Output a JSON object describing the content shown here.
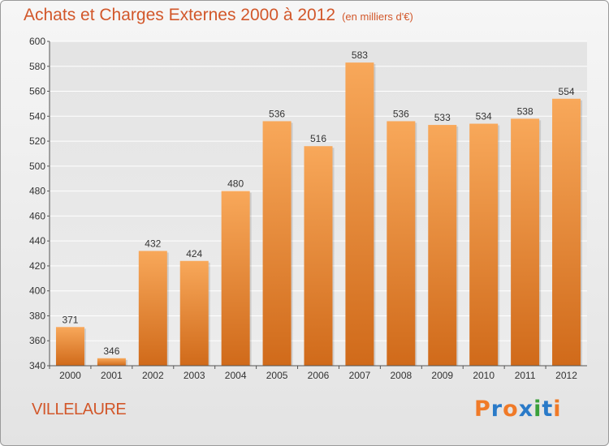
{
  "header": {
    "title": "Achats et Charges Externes 2000 à 2012",
    "unit": "(en milliers d'€)"
  },
  "footer": {
    "commune": "VILLELAURE",
    "logo": "Proxiti"
  },
  "colors": {
    "title": "#d2572a",
    "bar_light": "#f8a85a",
    "bar_dark": "#d06a1a",
    "logo_letters": [
      "#f07a28",
      "#2a7ac8",
      "#f07a28",
      "#2a7ac8",
      "#3aa03a",
      "#2a7ac8",
      "#f07a28"
    ]
  },
  "chart_data": {
    "type": "bar",
    "title": "Achats et Charges Externes 2000 à 2012",
    "subtitle": "(en milliers d'€)",
    "categories": [
      "2000",
      "2001",
      "2002",
      "2003",
      "2004",
      "2005",
      "2006",
      "2007",
      "2008",
      "2009",
      "2010",
      "2011",
      "2012"
    ],
    "values": [
      371,
      346,
      432,
      424,
      480,
      536,
      516,
      583,
      536,
      533,
      534,
      538,
      554
    ],
    "ylim": [
      340,
      600
    ],
    "yticks": [
      340,
      360,
      380,
      400,
      420,
      440,
      460,
      480,
      500,
      520,
      540,
      560,
      580,
      600
    ],
    "grid": "horizontal",
    "data_labels": true
  }
}
